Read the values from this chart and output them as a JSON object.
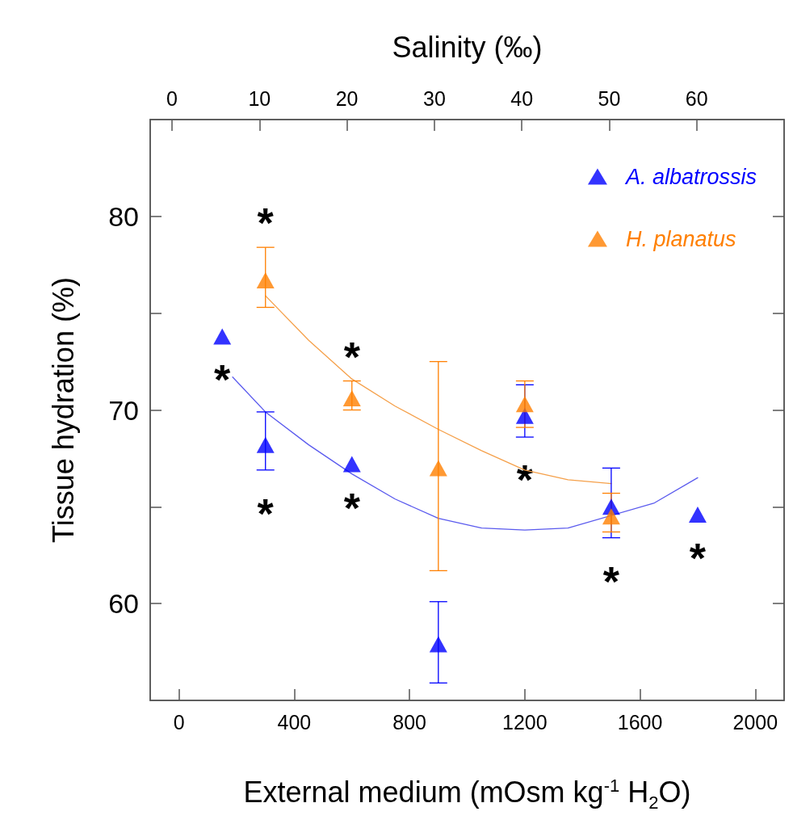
{
  "chart_data": {
    "type": "scatter",
    "xlabel": "External medium (mOsm kg$^{-1}$ H$_{2}$O)",
    "ylabel": "Tissue hydration (%)",
    "x2label": "Salinity (‰)",
    "xlim": [
      -100,
      2100
    ],
    "xticks": [
      0,
      400,
      800,
      1200,
      1600,
      2000
    ],
    "x2lim": [
      -2.5,
      70
    ],
    "x2ticks": [
      0,
      10,
      20,
      30,
      40,
      50,
      60
    ],
    "ylim": [
      55,
      85
    ],
    "yticks": [
      60,
      {
        "value": 65,
        "label": null
      },
      70,
      {
        "value": 75,
        "label": null
      },
      80
    ],
    "grid": false,
    "legend": "top right",
    "marker": "triangle",
    "series": [
      {
        "name": "A. albatrossis",
        "color": "#0000ff",
        "x": [
          150,
          300,
          600,
          900,
          1200,
          1500,
          1800
        ],
        "values": [
          73.8,
          68.2,
          67.2,
          57.9,
          69.7,
          65.0,
          64.6
        ],
        "errors": [
          null,
          [
            66.9,
            69.9
          ],
          null,
          [
            55.9,
            60.1
          ],
          [
            68.6,
            71.3
          ],
          [
            63.4,
            67.0
          ],
          null
        ]
      },
      {
        "name": "H. planatus",
        "color": "#ff7f00",
        "x": [
          300,
          600,
          900,
          1200,
          1500
        ],
        "values": [
          76.7,
          70.6,
          67.0,
          70.3,
          64.5
        ],
        "errors": [
          [
            75.3,
            78.4
          ],
          [
            70.0,
            71.5
          ],
          [
            61.7,
            72.5
          ],
          [
            69.1,
            71.5
          ],
          [
            63.7,
            65.7
          ]
        ]
      },
      {
        "type": "line",
        "marker": "none",
        "color": "#5a5aee",
        "x": [
          186,
          300,
          450,
          600,
          750,
          900,
          1050,
          1200,
          1350,
          1650,
          1800
        ],
        "values": [
          71.7,
          69.9,
          68.2,
          66.7,
          65.4,
          64.4,
          63.9,
          63.8,
          63.9,
          65.2,
          66.5
        ]
      },
      {
        "type": "line",
        "marker": "none",
        "color": "#f5a04a",
        "x": [
          300,
          450,
          600,
          750,
          900,
          1050,
          1200,
          1350,
          1500
        ],
        "values": [
          75.9,
          73.6,
          71.6,
          70.2,
          69.0,
          67.9,
          66.9,
          66.4,
          66.2
        ]
      }
    ],
    "annotations": [
      {
        "text": "*",
        "x": 150,
        "y": 73.8
      },
      {
        "text": "*",
        "x": 300,
        "y": 76.7
      },
      {
        "text": "*",
        "x": 300,
        "y": 68.2
      },
      {
        "text": "*",
        "x": 600,
        "y": 70.6
      },
      {
        "text": "*",
        "x": 600,
        "y": 67.2
      },
      {
        "text": "*",
        "x": 1200,
        "y": 66.9
      },
      {
        "text": "*",
        "x": 1500,
        "y": 65.0
      },
      {
        "text": "*",
        "x": 1800,
        "y": 64.6
      }
    ]
  }
}
